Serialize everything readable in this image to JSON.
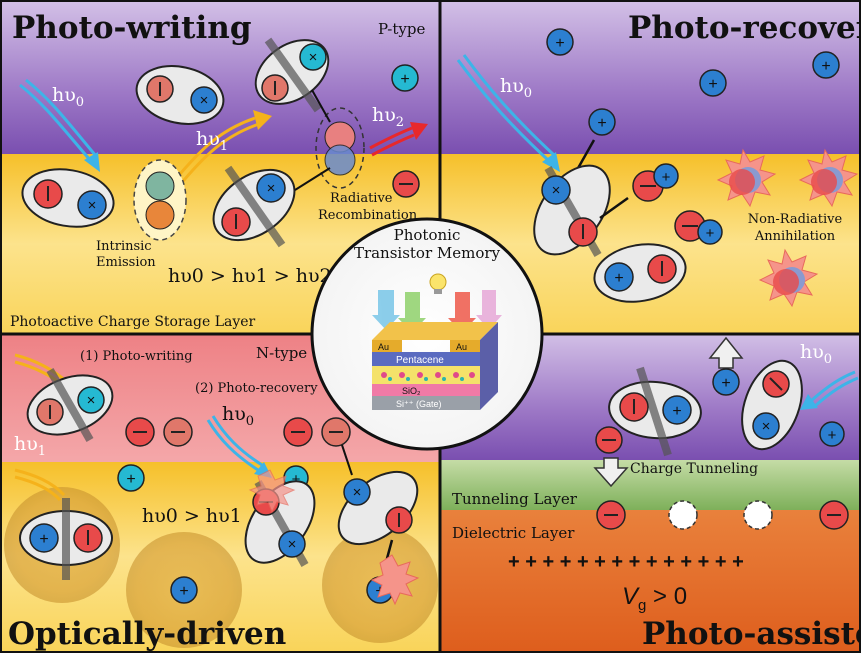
{
  "quadrants": {
    "photo_writing": {
      "title": "Photo-writing",
      "type_label": "P-type",
      "photon_in": "hυ",
      "photon_in_sub": "0",
      "photon_mid": "hυ",
      "photon_mid_sub": "1",
      "photon_out": "hυ",
      "photon_out_sub": "2",
      "intrinsic_emission": [
        "Intrinsic",
        "Emission"
      ],
      "radiative_recombination": [
        "Radiative",
        "Recombination"
      ],
      "relation": "hυ0 > hυ1 > hυ2",
      "layer_label": "Photoactive Charge Storage Layer"
    },
    "photo_recovery": {
      "title": "Photo-recovery",
      "photon_in": "hυ",
      "photon_in_sub": "0",
      "non_radiative": [
        "Non-Radiative",
        "Annihilation"
      ]
    },
    "optically_driven": {
      "title": "Optically-driven",
      "type_label": "N-type",
      "step1": "(1) Photo-writing",
      "step2": "(2) Photo-recovery",
      "photon_a": "hυ",
      "photon_a_sub": "1",
      "photon_b": "hυ",
      "photon_b_sub": "0",
      "relation": "hυ0 > hυ1"
    },
    "photo_assisted": {
      "title": "Photo-assisted",
      "photon_in": "hυ",
      "photon_in_sub": "0",
      "tunneling": "Charge Tunneling",
      "tunneling_layer": "Tunneling Layer",
      "dielectric_layer": "Dielectric Layer",
      "plus_row": "+ + + + + + + + + + + + + +",
      "gate_voltage": "V",
      "gate_voltage_sub": "g",
      "gate_condition": " > 0"
    }
  },
  "center": {
    "title_line1": "Photonic",
    "title_line2": "Transistor Memory",
    "layers": {
      "au_left": "Au",
      "au_right": "Au",
      "pentacene": "Pentacene",
      "sio2": "SiO₂",
      "gate": "Si⁺⁺ (Gate)"
    }
  },
  "colors": {
    "purple": "#8a63b6",
    "yellow": "#f9d24a",
    "pink": "#f18a8e",
    "green": "#9cc27a",
    "orange": "#e7712b",
    "electron": "#e84a4a",
    "hole": "#2c7fd0",
    "hole_cyan": "#25b9d2",
    "arrow_blue": "#3db4e8",
    "arrow_yellow": "#f5b21b",
    "arrow_red": "#e8282b"
  }
}
